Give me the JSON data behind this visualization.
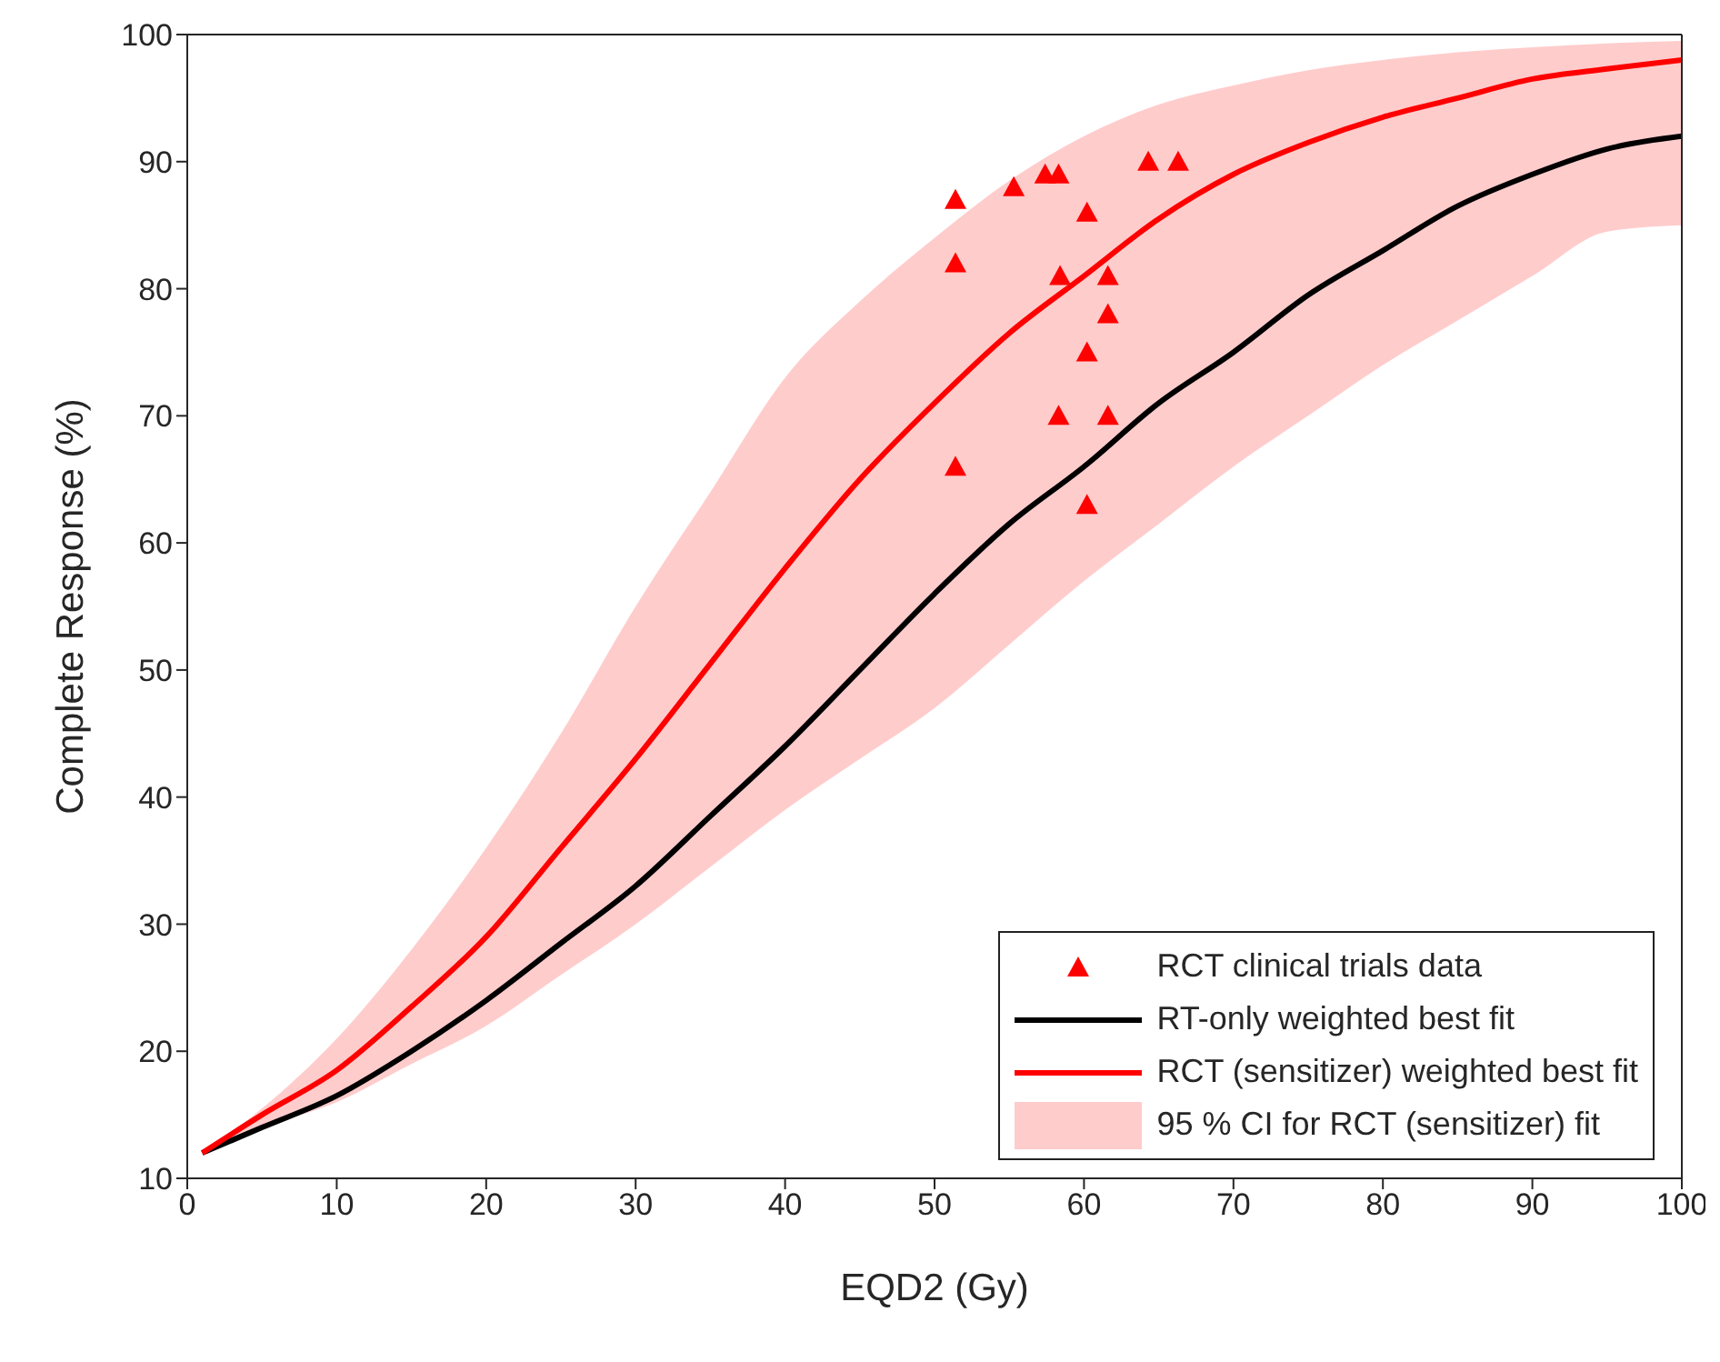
{
  "chart_data": {
    "type": "line",
    "xlabel": "EQD2 (Gy)",
    "ylabel": "Complete Response (%)",
    "xlim": [
      0,
      100
    ],
    "xticks": [
      0,
      10,
      20,
      30,
      40,
      50,
      60,
      70,
      80,
      90,
      100
    ],
    "ylim": [
      10,
      100
    ],
    "yticks": [
      10,
      20,
      30,
      40,
      50,
      60,
      70,
      80,
      90,
      100
    ],
    "grid": false,
    "legend": "bottom right",
    "annotations": [
      "95 % CI for RCT (sensitizer) fit"
    ],
    "series": [
      {
        "type": "scatter",
        "name": "RCT clinical trials data",
        "color": "#ff0000",
        "marker": "triangle",
        "x": [
          51.4,
          51.4,
          51.4,
          55.3,
          57.4,
          58.3,
          58.4,
          58.3,
          60.2,
          60.2,
          60.2,
          61.6,
          61.6,
          61.6,
          64.3,
          66.3
        ],
        "values": [
          87,
          82,
          66,
          88,
          89,
          89,
          81,
          70,
          86,
          75,
          63,
          81,
          78,
          70,
          90,
          90
        ]
      },
      {
        "name": "RT-only weighted best fit",
        "color": "#000000",
        "line_style": "solid",
        "x": [
          1,
          5,
          10,
          15,
          20,
          25,
          30,
          35,
          40,
          45,
          50,
          55,
          60,
          65,
          70,
          75,
          80,
          85,
          90,
          95,
          100
        ],
        "values": [
          12,
          14,
          16.5,
          20,
          24,
          28.5,
          33,
          38.5,
          44,
          50,
          56,
          61.5,
          66,
          71,
          75,
          79.5,
          83,
          86.5,
          89,
          91,
          92
        ]
      },
      {
        "name": "RCT (sensitizer) weighted best fit",
        "color": "#ff0000",
        "line_style": "solid",
        "x": [
          1,
          5,
          10,
          15,
          20,
          25,
          30,
          35,
          40,
          45,
          50,
          55,
          60,
          65,
          70,
          75,
          80,
          85,
          90,
          95,
          100
        ],
        "values": [
          12,
          15,
          18.5,
          23.5,
          29,
          36,
          43,
          50.5,
          58,
          65,
          71,
          76.5,
          81,
          85.5,
          89,
          91.5,
          93.5,
          95,
          96.5,
          97.3,
          98
        ],
        "lower": [
          12,
          14,
          16,
          19,
          22,
          26,
          30,
          34.5,
          39,
          43,
          47,
          52,
          57,
          61.5,
          66,
          70,
          74,
          77.5,
          81,
          84.5,
          85
        ],
        "upper": [
          12,
          15.5,
          21,
          28,
          36,
          45,
          55,
          64,
          73,
          79,
          84,
          88.5,
          92,
          94.5,
          96,
          97.2,
          98,
          98.6,
          99,
          99.3,
          99.5
        ]
      }
    ]
  }
}
